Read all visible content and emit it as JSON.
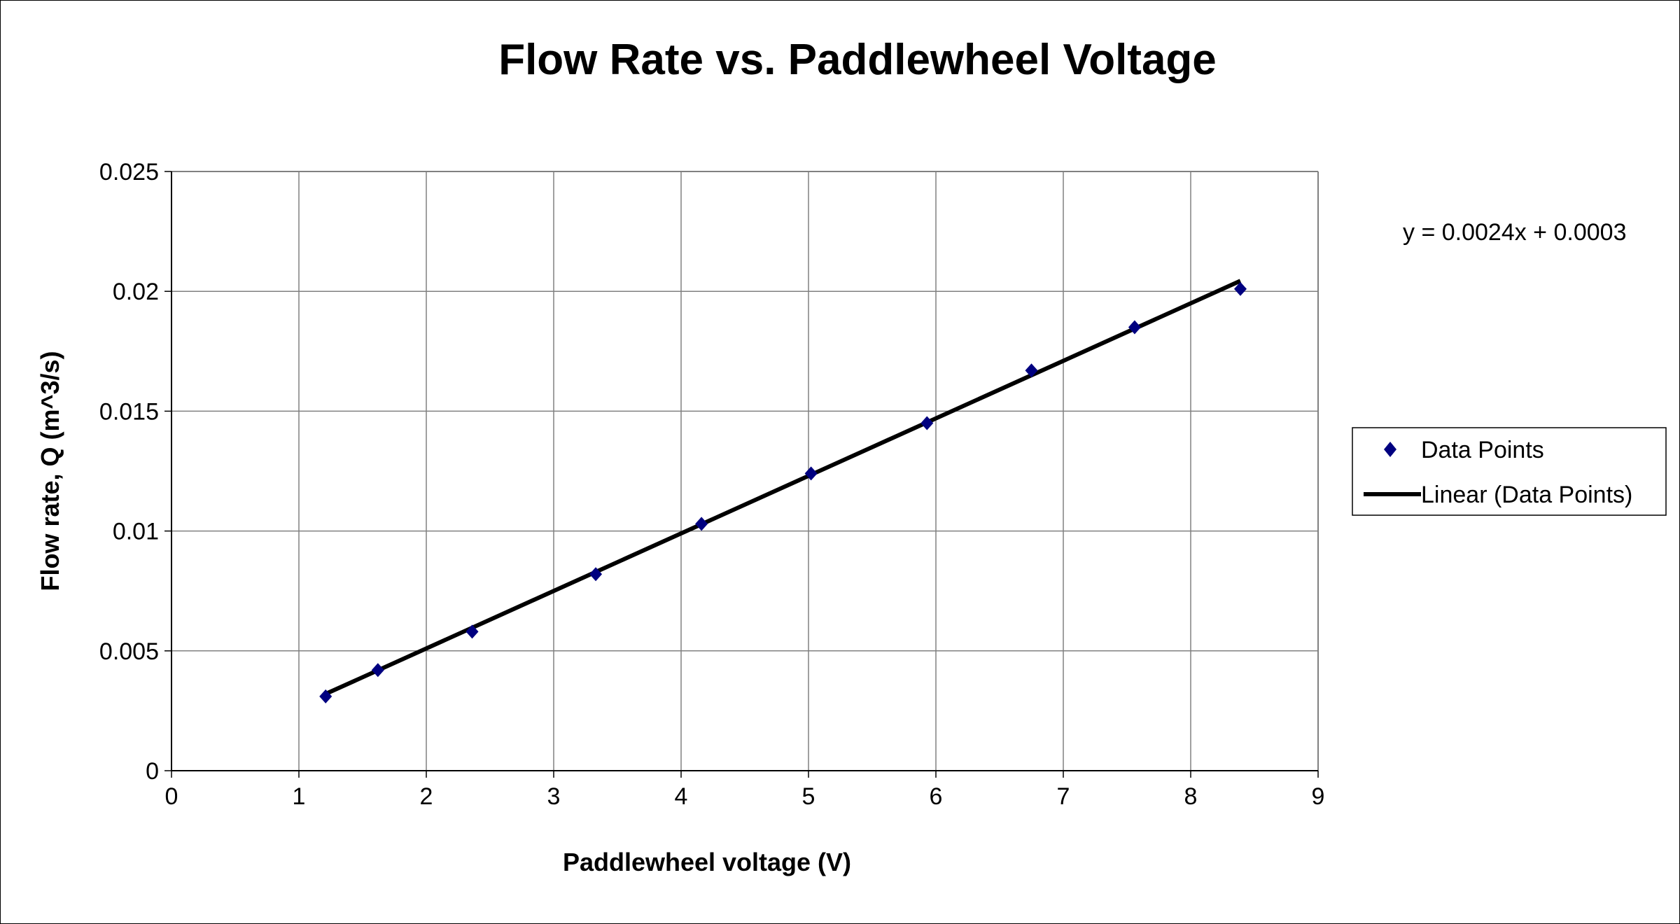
{
  "chart_data": {
    "type": "scatter",
    "title": "Flow Rate vs. Paddlewheel Voltage",
    "xlabel": "Paddlewheel voltage (V)",
    "ylabel": "Flow rate, Q (m^3/s)",
    "xlim": [
      0,
      9
    ],
    "ylim": [
      0,
      0.025
    ],
    "xticks": [
      "0",
      "1",
      "2",
      "3",
      "4",
      "5",
      "6",
      "7",
      "8",
      "9"
    ],
    "yticks": [
      "0",
      "0.005",
      "0.01",
      "0.015",
      "0.02",
      "0.025"
    ],
    "grid": true,
    "legend_position": "right",
    "series": [
      {
        "name": "Data Points",
        "marker": "diamond",
        "color": "#000080",
        "x": [
          1.21,
          1.62,
          2.36,
          3.33,
          4.16,
          5.02,
          5.93,
          6.75,
          7.56,
          8.39
        ],
        "y": [
          0.0031,
          0.0042,
          0.0058,
          0.0082,
          0.0103,
          0.0124,
          0.0145,
          0.0167,
          0.0185,
          0.0201
        ]
      }
    ],
    "trendline": {
      "name": "Linear (Data Points)",
      "type": "linear",
      "slope": 0.0024,
      "intercept": 0.0003,
      "x_range": [
        1.21,
        8.39
      ],
      "color": "#000000",
      "equation": "y = 0.0024x + 0.0003"
    }
  }
}
